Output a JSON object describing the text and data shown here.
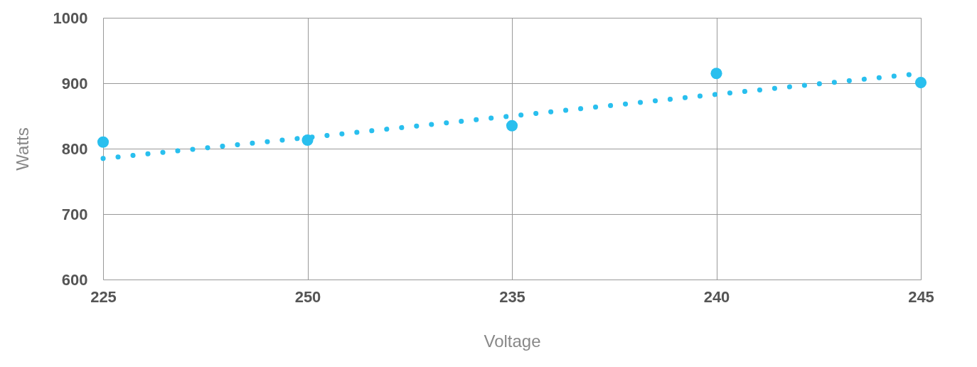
{
  "chart_data": {
    "type": "scatter",
    "xlabel": "Voltage",
    "ylabel": "Watts",
    "categories": [
      "225",
      "250",
      "235",
      "240",
      "245"
    ],
    "series": [
      {
        "color": "#29bfee",
        "marker": "circle",
        "values": [
          810,
          813,
          835,
          915,
          901
        ]
      },
      {
        "type": "line",
        "color": "#29bfee",
        "line_style": "dotted",
        "values": [
          785,
          817,
          850,
          883,
          915
        ]
      }
    ],
    "ylim": [
      600,
      1000
    ],
    "yticks": [
      600,
      700,
      800,
      900,
      1000
    ],
    "grid": true
  }
}
